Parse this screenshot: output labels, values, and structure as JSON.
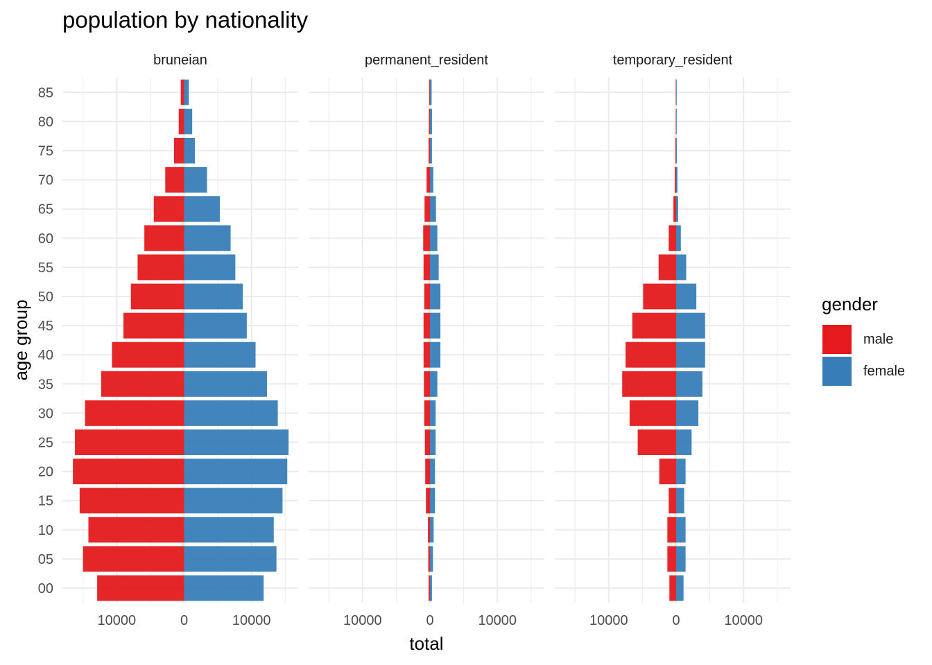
{
  "title": "population by nationality",
  "colors": {
    "male": "#E41A1C",
    "female": "#377EB8",
    "grid": "#EBEBEB",
    "tick": "#4D4D4D"
  },
  "legend": {
    "title": "gender",
    "items": [
      {
        "key": "male",
        "label": "male",
        "color": "#E41A1C"
      },
      {
        "key": "female",
        "label": "female",
        "color": "#377EB8"
      }
    ]
  },
  "chart_data": {
    "type": "bar",
    "orientation": "horizontal",
    "title": "population by nationality",
    "xlabel": "total",
    "ylabel": "age group",
    "xlim": [
      -17000,
      17000
    ],
    "x_ticks": [
      -10000,
      0,
      10000
    ],
    "x_tick_labels": [
      "10000",
      "0",
      "10000"
    ],
    "grid": true,
    "legend_position": "right",
    "categories": [
      "00",
      "05",
      "10",
      "15",
      "20",
      "25",
      "30",
      "35",
      "40",
      "45",
      "50",
      "55",
      "60",
      "65",
      "70",
      "75",
      "80",
      "85"
    ],
    "panels": [
      {
        "name": "bruneian",
        "series": [
          {
            "name": "male",
            "values": [
              -12900,
              -15000,
              -14200,
              -15500,
              -16500,
              -16200,
              -14700,
              -12300,
              -10700,
              -9000,
              -7900,
              -6900,
              -5900,
              -4500,
              -2800,
              -1500,
              -800,
              -500
            ]
          },
          {
            "name": "female",
            "values": [
              11800,
              13700,
              13300,
              14600,
              15300,
              15500,
              13900,
              12300,
              10600,
              9300,
              8700,
              7600,
              6900,
              5300,
              3400,
              1600,
              1200,
              700
            ]
          }
        ]
      },
      {
        "name": "permanent_resident",
        "series": [
          {
            "name": "male",
            "values": [
              -200,
              -250,
              -300,
              -600,
              -700,
              -750,
              -850,
              -900,
              -950,
              -950,
              -850,
              -950,
              -1000,
              -800,
              -500,
              -200,
              -150,
              -100
            ]
          },
          {
            "name": "female",
            "values": [
              300,
              450,
              550,
              750,
              750,
              850,
              850,
              1100,
              1550,
              1550,
              1550,
              1300,
              1100,
              900,
              500,
              300,
              300,
              250
            ]
          }
        ]
      },
      {
        "name": "temporary_resident",
        "series": [
          {
            "name": "male",
            "values": [
              -1000,
              -1300,
              -1300,
              -1100,
              -2500,
              -5700,
              -6900,
              -8000,
              -7500,
              -6500,
              -4900,
              -2600,
              -1100,
              -400,
              -200,
              -100,
              -50,
              -50
            ]
          },
          {
            "name": "female",
            "values": [
              1100,
              1400,
              1400,
              1200,
              1400,
              2300,
              3300,
              3900,
              4300,
              4300,
              3000,
              1500,
              700,
              300,
              200,
              100,
              50,
              50
            ]
          }
        ]
      }
    ]
  }
}
